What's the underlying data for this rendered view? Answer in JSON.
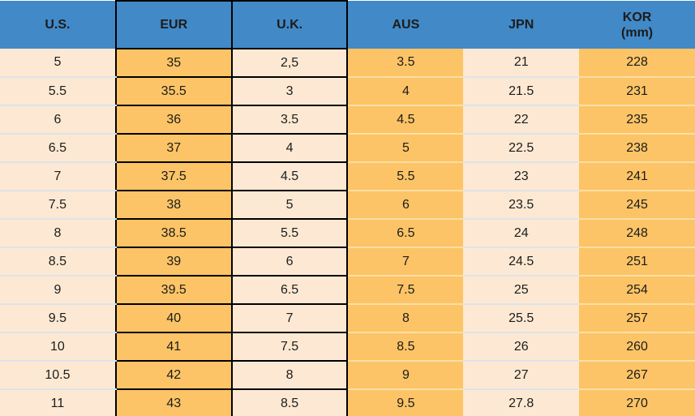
{
  "chart_data": {
    "type": "table",
    "columns": [
      "U.S.",
      "EUR",
      "U.K.",
      "AUS",
      "JPN",
      "KOR (mm)"
    ],
    "rows": [
      [
        "5",
        "35",
        "2,5",
        "3.5",
        "21",
        "228"
      ],
      [
        "5.5",
        "35.5",
        "3",
        "4",
        "21.5",
        "231"
      ],
      [
        "6",
        "36",
        "3.5",
        "4.5",
        "22",
        "235"
      ],
      [
        "6.5",
        "37",
        "4",
        "5",
        "22.5",
        "238"
      ],
      [
        "7",
        "37.5",
        "4.5",
        "5.5",
        "23",
        "241"
      ],
      [
        "7.5",
        "38",
        "5",
        "6",
        "23.5",
        "245"
      ],
      [
        "8",
        "38.5",
        "5.5",
        "6.5",
        "24",
        "248"
      ],
      [
        "8.5",
        "39",
        "6",
        "7",
        "24.5",
        "251"
      ],
      [
        "9",
        "39.5",
        "6.5",
        "7.5",
        "25",
        "254"
      ],
      [
        "9.5",
        "40",
        "7",
        "8",
        "25.5",
        "257"
      ],
      [
        "10",
        "41",
        "7.5",
        "8.5",
        "26",
        "260"
      ],
      [
        "10.5",
        "42",
        "8",
        "9",
        "27",
        "267"
      ],
      [
        "11",
        "43",
        "8.5",
        "9.5",
        "27.8",
        "270"
      ]
    ],
    "layout_hints": {
      "grid": "black borders on EUR and U.K. columns only",
      "header_rows": 1,
      "kor_header_second_line": "(mm)"
    }
  },
  "colors": {
    "header_bg": "#4289C7",
    "orange_cell": "#FCC466",
    "cream_cell": "#FDE9D3",
    "grid_black": "#000000",
    "separator_on_cream": "#DDE4E9",
    "separator_on_orange": "#FBDFA6",
    "text": "#1C1C1C"
  }
}
